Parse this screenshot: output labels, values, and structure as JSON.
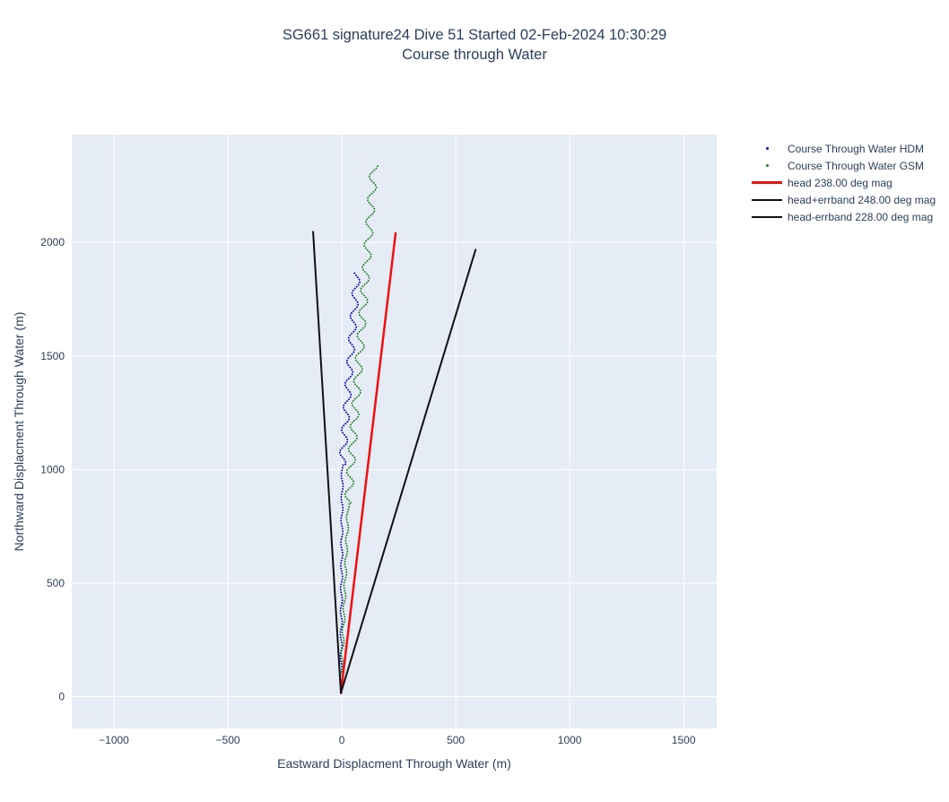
{
  "chart_data": {
    "type": "scatter",
    "title": "SG661 signature24 Dive 51 Started 02-Feb-2024 10:30:29",
    "subtitle": "Course through Water",
    "xlabel": "Eastward Displacment Through Water (m)",
    "ylabel": "Northward Displacment Through Water (m)",
    "xlim": [
      -1185,
      1645
    ],
    "ylim": [
      -140,
      2475
    ],
    "xtick_values": [
      -1000,
      -500,
      0,
      500,
      1000,
      1500
    ],
    "xtick_labels": [
      "−1000",
      "−500",
      "0",
      "500",
      "1000",
      "1500"
    ],
    "ytick_values": [
      0,
      500,
      1000,
      1500,
      2000
    ],
    "ytick_labels": [
      "0",
      "500",
      "1000",
      "1500",
      "2000"
    ],
    "grid": true,
    "plot_bg": "#e5ecf6",
    "grid_color": "#ffffff",
    "text_color": "#2a3f5f",
    "legend_position": "top-right",
    "series": [
      {
        "name": "Course Through Water HDM",
        "type": "dotted-wavy",
        "marker": "dot",
        "color": "#0000b0",
        "start": [
          -4,
          16
        ],
        "straight_to": [
          2,
          1020
        ],
        "straight_amplitude": 4,
        "end": [
          67,
          1870
        ],
        "wave_amplitude": 15,
        "wave_period": 100,
        "wave_phase": 0.9
      },
      {
        "name": "Course Through Water GSM",
        "type": "dotted-wavy",
        "marker": "dot",
        "color": "#1e7d1e",
        "start": [
          -4,
          16
        ],
        "straight_to": [
          28,
          850
        ],
        "straight_amplitude": 5,
        "end": [
          142,
          2343
        ],
        "wave_amplitude": 17,
        "wave_period": 100,
        "wave_phase": 0.0
      },
      {
        "name": "head 238.00 deg mag",
        "type": "line",
        "marker": "line",
        "color": "#ee1111",
        "start": [
          -4,
          16
        ],
        "end": [
          236,
          2040
        ],
        "width": 2.5
      },
      {
        "name": "head+errband 248.00 deg mag",
        "type": "line",
        "marker": "line",
        "color": "#111111",
        "start": [
          -4,
          16
        ],
        "end": [
          587,
          1968
        ],
        "width": 2
      },
      {
        "name": "head-errband 228.00 deg mag",
        "type": "line",
        "marker": "line",
        "color": "#111111",
        "start": [
          -4,
          16
        ],
        "end": [
          -126,
          2047
        ],
        "width": 2
      }
    ]
  }
}
